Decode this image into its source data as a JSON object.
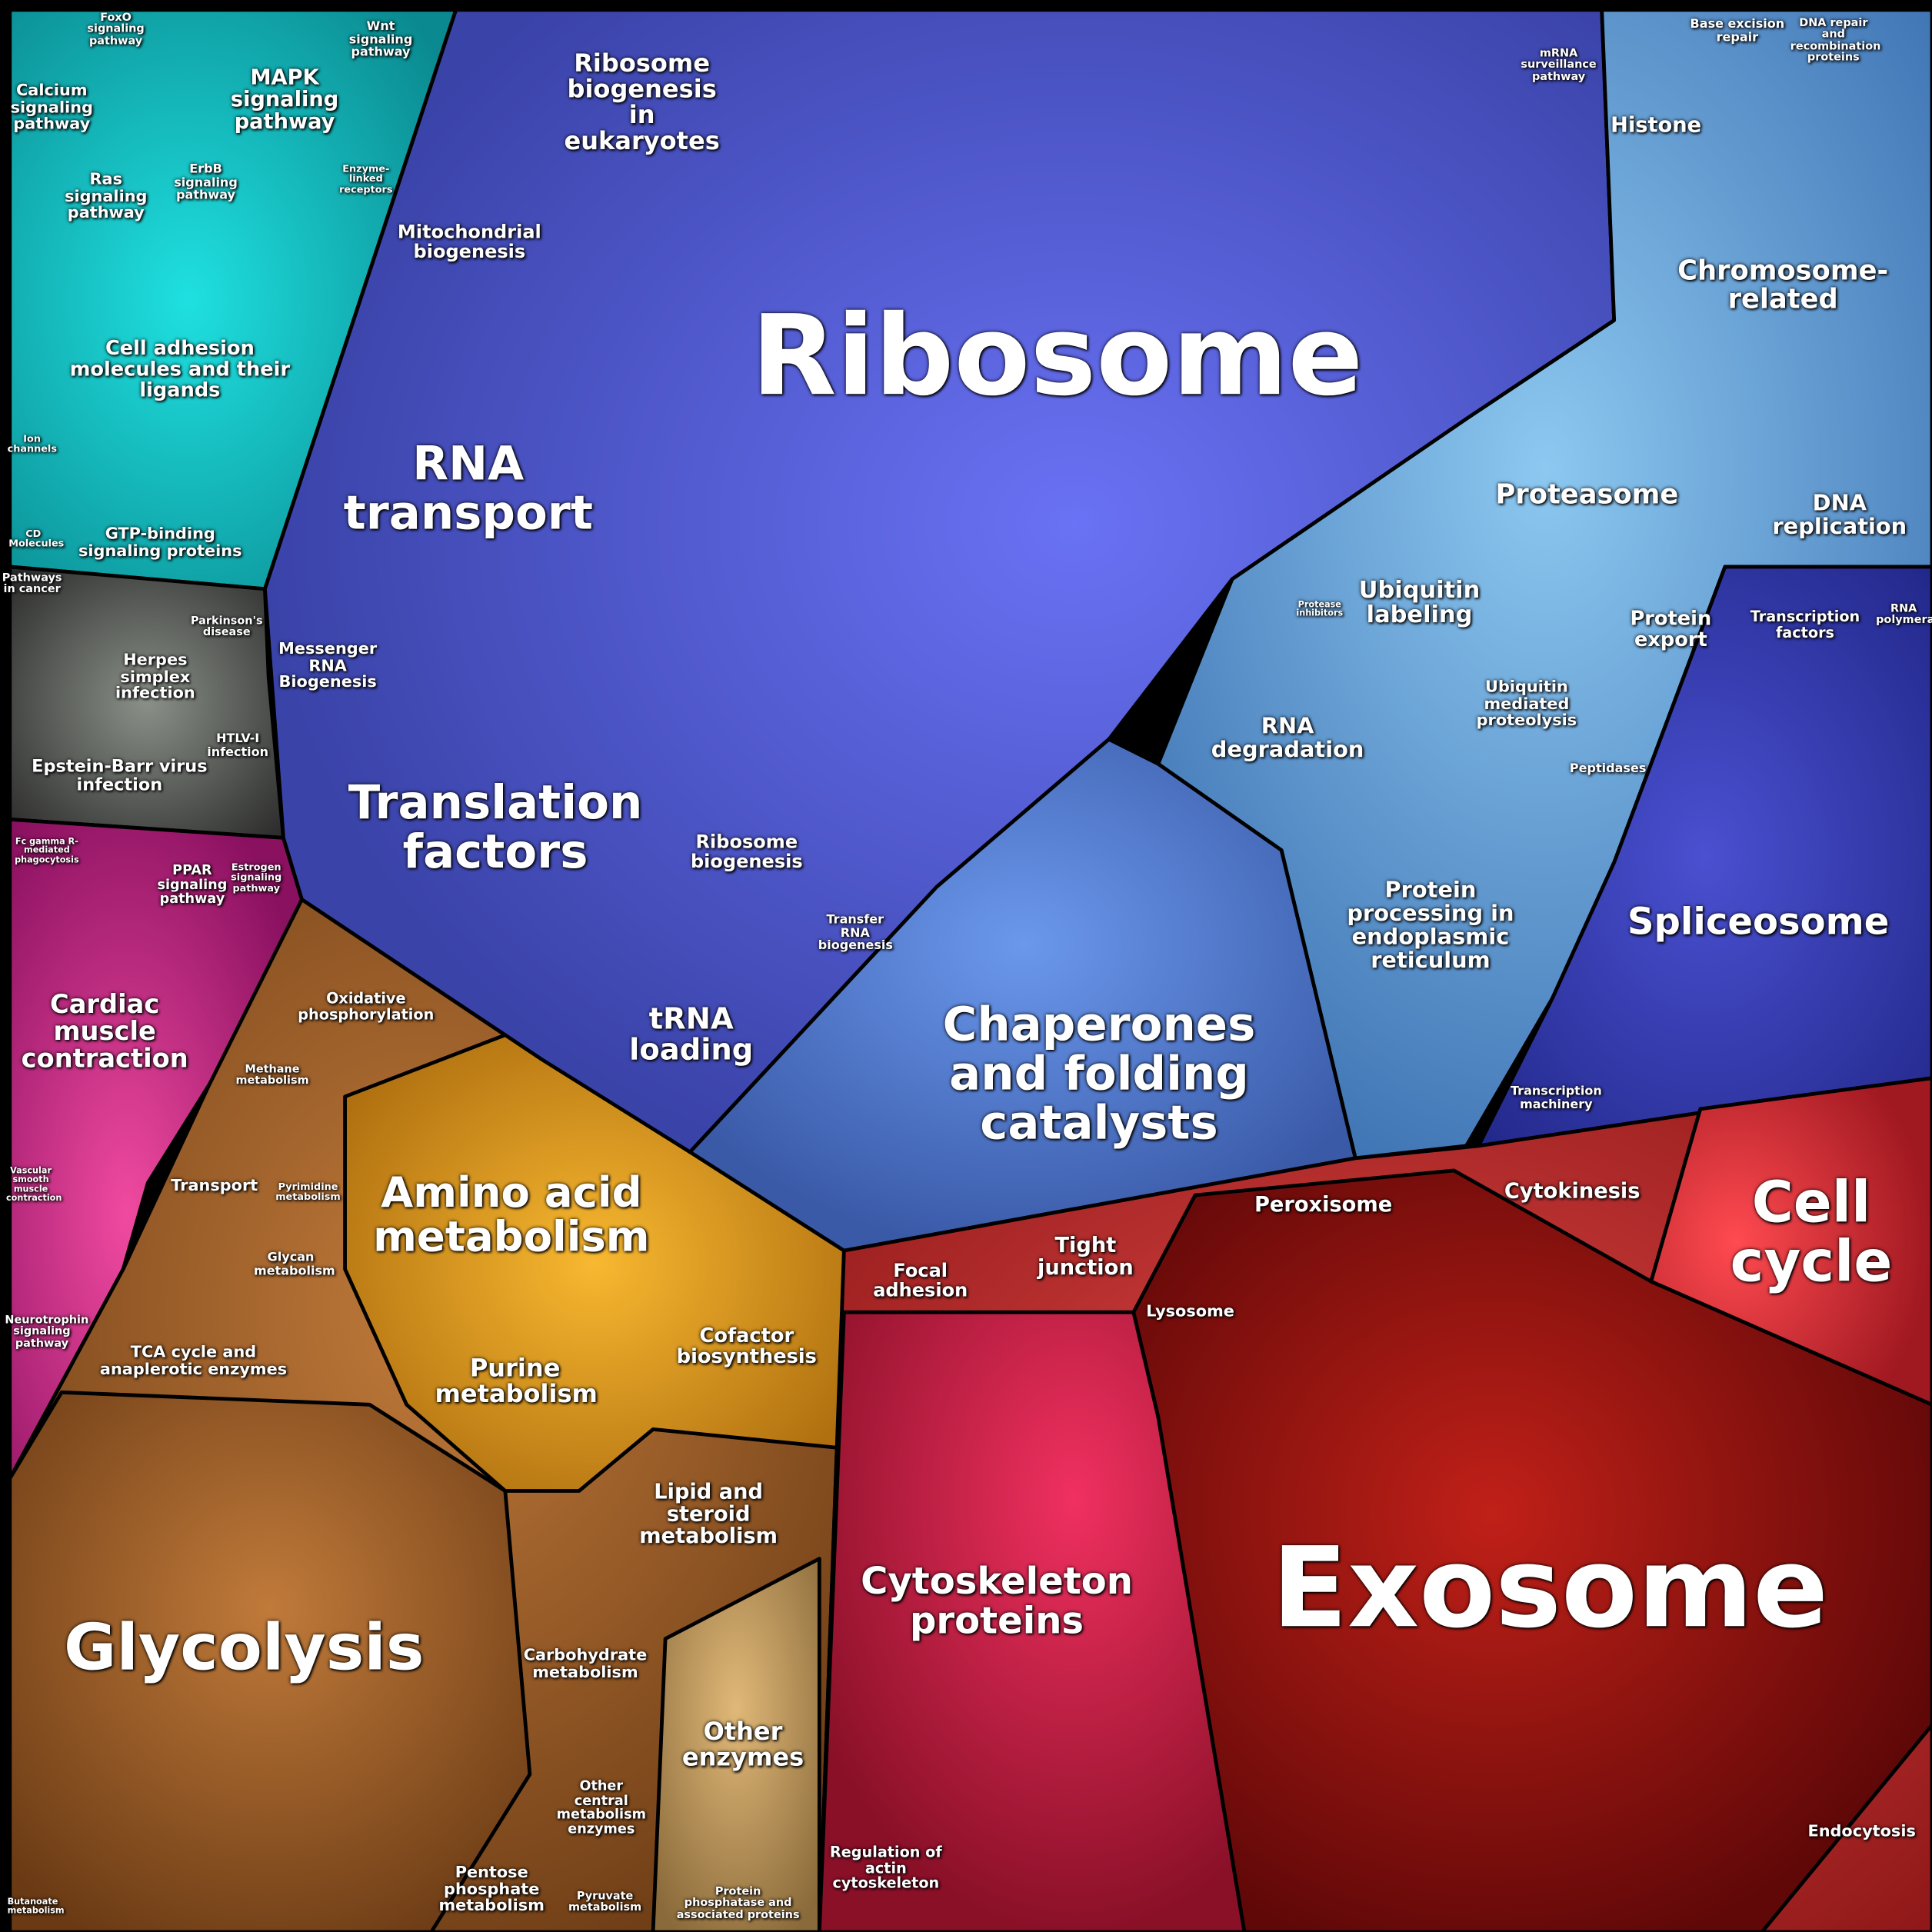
{
  "regions": [
    {
      "label": "Ribosome"
    },
    {
      "label": "Exosome"
    },
    {
      "label": "Glycolysis"
    },
    {
      "label": "RNA transport"
    },
    {
      "label": "Translation factors"
    },
    {
      "label": "Chaperones and folding catalysts"
    },
    {
      "label": "Amino acid metabolism"
    },
    {
      "label": "Cell cycle"
    },
    {
      "label": "Spliceosome"
    },
    {
      "label": "Cytoskeleton proteins"
    },
    {
      "label": "Chromosome-related"
    },
    {
      "label": "Proteasome"
    },
    {
      "label": "DNA replication"
    },
    {
      "label": "Ribosome biogenesis in eukaryotes"
    },
    {
      "label": "Mitochondrial biogenesis"
    },
    {
      "label": "Messenger RNA Biogenesis"
    },
    {
      "label": "Ribosome biogenesis"
    },
    {
      "label": "Transfer RNA biogenesis"
    },
    {
      "label": "tRNA loading"
    },
    {
      "label": "RNA degradation"
    },
    {
      "label": "Ubiquitin labeling"
    },
    {
      "label": "Ubiquitin mediated proteolysis"
    },
    {
      "label": "Protein export"
    },
    {
      "label": "Protein processing in endoplasmic reticulum"
    },
    {
      "label": "Histone"
    },
    {
      "label": "Base excision repair"
    },
    {
      "label": "DNA repair and recombination proteins"
    },
    {
      "label": "mRNA surveillance pathway"
    },
    {
      "label": "Transcription factors"
    },
    {
      "label": "RNA polymerase"
    },
    {
      "label": "Transcription machinery"
    },
    {
      "label": "Peptidases"
    },
    {
      "label": "Protease inhibitors"
    },
    {
      "label": "Peroxisome"
    },
    {
      "label": "Cytokinesis"
    },
    {
      "label": "Lysosome"
    },
    {
      "label": "Tight junction"
    },
    {
      "label": "Focal adhesion"
    },
    {
      "label": "Regulation of actin cytoskeleton"
    },
    {
      "label": "Endocytosis"
    },
    {
      "label": "Calcium signaling pathway"
    },
    {
      "label": "MAPK signaling pathway"
    },
    {
      "label": "Ras signaling pathway"
    },
    {
      "label": "ErbB signaling pathway"
    },
    {
      "label": "Cell adhesion molecules and their ligands"
    },
    {
      "label": "GTP-binding signaling proteins"
    },
    {
      "label": "Wnt signaling pathway"
    },
    {
      "label": "FoxO signaling pathway"
    },
    {
      "label": "Enzyme-linked receptors"
    },
    {
      "label": "Ion channels"
    },
    {
      "label": "CD Molecules"
    },
    {
      "label": "Pathways in cancer"
    },
    {
      "label": "Herpes simplex infection"
    },
    {
      "label": "Epstein-Barr virus infection"
    },
    {
      "label": "HTLV-I infection"
    },
    {
      "label": "Parkinson's disease"
    },
    {
      "label": "PPAR signaling pathway"
    },
    {
      "label": "Estrogen signaling pathway"
    },
    {
      "label": "Cardiac muscle contraction"
    },
    {
      "label": "Fc gamma R-mediated phagocytosis"
    },
    {
      "label": "Neurotrophin signaling pathway"
    },
    {
      "label": "Vascular smooth muscle contraction"
    },
    {
      "label": "Oxidative phosphorylation"
    },
    {
      "label": "Methane metabolism"
    },
    {
      "label": "Transport"
    },
    {
      "label": "Pyrimidine metabolism"
    },
    {
      "label": "Glycan metabolism"
    },
    {
      "label": "TCA cycle and anaplerotic enzymes"
    },
    {
      "label": "Purine metabolism"
    },
    {
      "label": "Cofactor biosynthesis"
    },
    {
      "label": "Lipid and steroid metabolism"
    },
    {
      "label": "Carbohydrate metabolism"
    },
    {
      "label": "Other central metabolism enzymes"
    },
    {
      "label": "Other enzymes"
    },
    {
      "label": "Pentose phosphate metabolism"
    },
    {
      "label": "Pyruvate metabolism"
    },
    {
      "label": "Protein phosphatase and associated proteins"
    },
    {
      "label": "Butanoate metabolism"
    }
  ]
}
